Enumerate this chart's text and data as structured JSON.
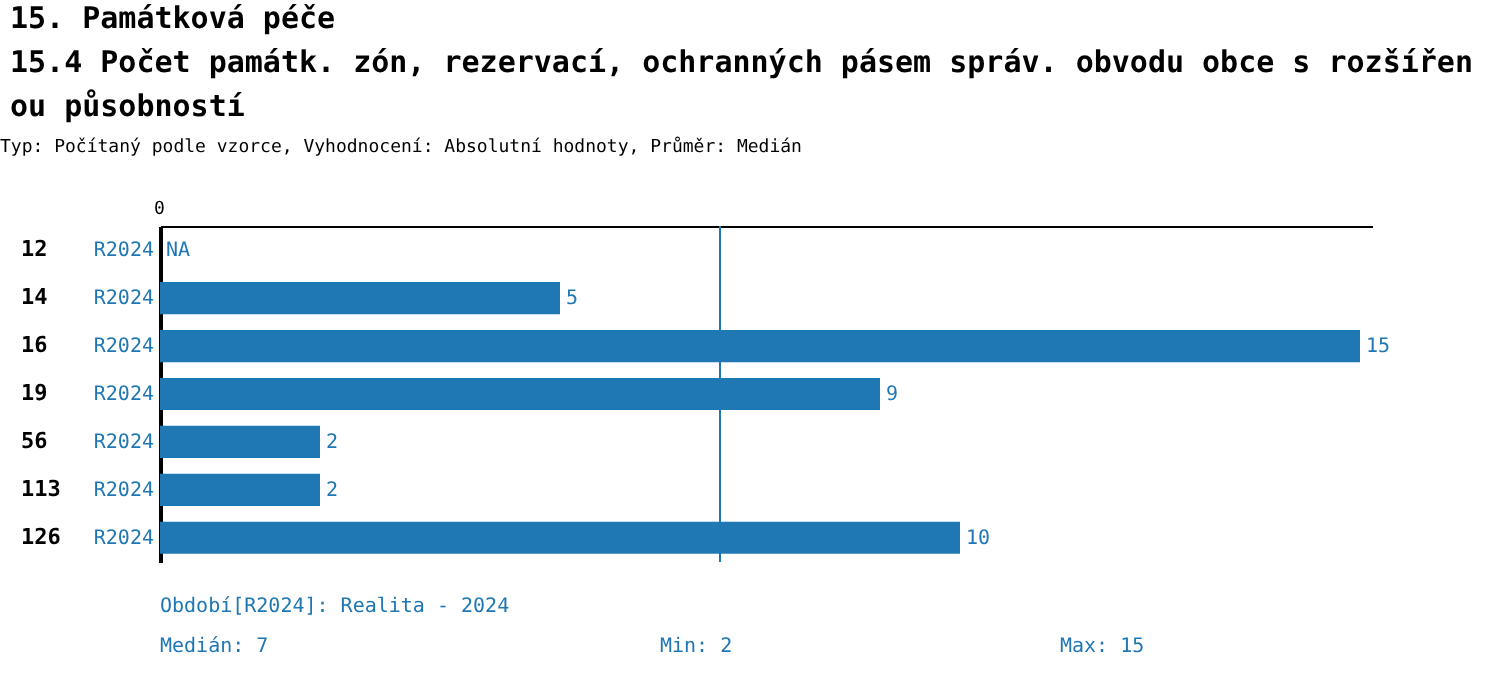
{
  "chart_data": {
    "type": "bar",
    "orientation": "horizontal",
    "title": "15. Památková péče",
    "subtitle": "15.4 Počet památk. zón, rezervací, ochranných pásem správ. obvodu obce s rozšířenou působností",
    "annotations": [
      "Typ: Počítaný podle vzorce, Vyhodnocení: Absolutní hodnoty, Průměr: Medián",
      "Období[R2024]: Realita - 2024",
      "Medián: 7",
      "Min: 2",
      "Max: 15",
      "0"
    ],
    "categories": [
      "12",
      "14",
      "16",
      "19",
      "56",
      "113",
      "126"
    ],
    "series": [
      {
        "name": "R2024",
        "color": "#1f77b4",
        "values": [
          null,
          5,
          15,
          9,
          2,
          2,
          10
        ],
        "value_labels": [
          "NA",
          "5",
          "15",
          "9",
          "2",
          "2",
          "10"
        ]
      }
    ],
    "ref_lines": [
      {
        "axis": "x",
        "value": 7,
        "color": "#1f77b4"
      }
    ]
  }
}
